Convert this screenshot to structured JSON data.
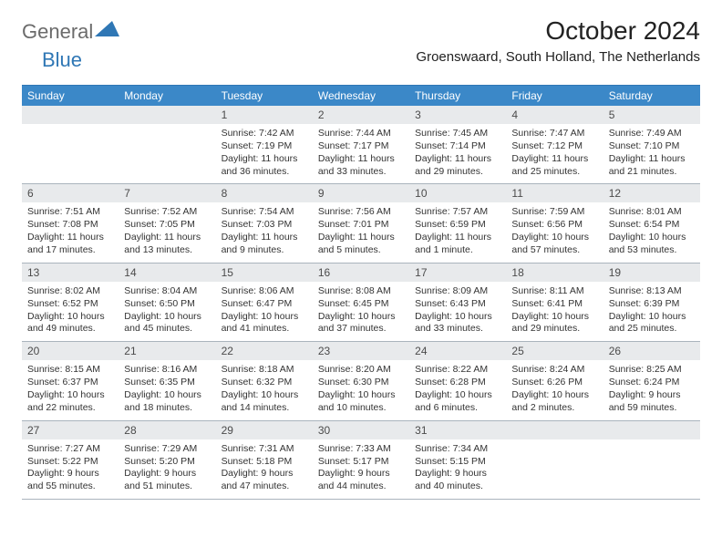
{
  "brand": {
    "part1": "General",
    "part2": "Blue"
  },
  "title": "October 2024",
  "location": "Groenswaard, South Holland, The Netherlands",
  "colors": {
    "header_bg": "#3b88c8",
    "daynum_bg": "#e8eaec",
    "border": "#aab4bd",
    "text": "#333333",
    "logo_gray": "#6b6b6b",
    "logo_blue": "#2f77b5",
    "background": "#ffffff"
  },
  "dayNames": [
    "Sunday",
    "Monday",
    "Tuesday",
    "Wednesday",
    "Thursday",
    "Friday",
    "Saturday"
  ],
  "weeks": [
    [
      {
        "num": "",
        "sunrise": "",
        "sunset": "",
        "daylight": ""
      },
      {
        "num": "",
        "sunrise": "",
        "sunset": "",
        "daylight": ""
      },
      {
        "num": "1",
        "sunrise": "Sunrise: 7:42 AM",
        "sunset": "Sunset: 7:19 PM",
        "daylight": "Daylight: 11 hours and 36 minutes."
      },
      {
        "num": "2",
        "sunrise": "Sunrise: 7:44 AM",
        "sunset": "Sunset: 7:17 PM",
        "daylight": "Daylight: 11 hours and 33 minutes."
      },
      {
        "num": "3",
        "sunrise": "Sunrise: 7:45 AM",
        "sunset": "Sunset: 7:14 PM",
        "daylight": "Daylight: 11 hours and 29 minutes."
      },
      {
        "num": "4",
        "sunrise": "Sunrise: 7:47 AM",
        "sunset": "Sunset: 7:12 PM",
        "daylight": "Daylight: 11 hours and 25 minutes."
      },
      {
        "num": "5",
        "sunrise": "Sunrise: 7:49 AM",
        "sunset": "Sunset: 7:10 PM",
        "daylight": "Daylight: 11 hours and 21 minutes."
      }
    ],
    [
      {
        "num": "6",
        "sunrise": "Sunrise: 7:51 AM",
        "sunset": "Sunset: 7:08 PM",
        "daylight": "Daylight: 11 hours and 17 minutes."
      },
      {
        "num": "7",
        "sunrise": "Sunrise: 7:52 AM",
        "sunset": "Sunset: 7:05 PM",
        "daylight": "Daylight: 11 hours and 13 minutes."
      },
      {
        "num": "8",
        "sunrise": "Sunrise: 7:54 AM",
        "sunset": "Sunset: 7:03 PM",
        "daylight": "Daylight: 11 hours and 9 minutes."
      },
      {
        "num": "9",
        "sunrise": "Sunrise: 7:56 AM",
        "sunset": "Sunset: 7:01 PM",
        "daylight": "Daylight: 11 hours and 5 minutes."
      },
      {
        "num": "10",
        "sunrise": "Sunrise: 7:57 AM",
        "sunset": "Sunset: 6:59 PM",
        "daylight": "Daylight: 11 hours and 1 minute."
      },
      {
        "num": "11",
        "sunrise": "Sunrise: 7:59 AM",
        "sunset": "Sunset: 6:56 PM",
        "daylight": "Daylight: 10 hours and 57 minutes."
      },
      {
        "num": "12",
        "sunrise": "Sunrise: 8:01 AM",
        "sunset": "Sunset: 6:54 PM",
        "daylight": "Daylight: 10 hours and 53 minutes."
      }
    ],
    [
      {
        "num": "13",
        "sunrise": "Sunrise: 8:02 AM",
        "sunset": "Sunset: 6:52 PM",
        "daylight": "Daylight: 10 hours and 49 minutes."
      },
      {
        "num": "14",
        "sunrise": "Sunrise: 8:04 AM",
        "sunset": "Sunset: 6:50 PM",
        "daylight": "Daylight: 10 hours and 45 minutes."
      },
      {
        "num": "15",
        "sunrise": "Sunrise: 8:06 AM",
        "sunset": "Sunset: 6:47 PM",
        "daylight": "Daylight: 10 hours and 41 minutes."
      },
      {
        "num": "16",
        "sunrise": "Sunrise: 8:08 AM",
        "sunset": "Sunset: 6:45 PM",
        "daylight": "Daylight: 10 hours and 37 minutes."
      },
      {
        "num": "17",
        "sunrise": "Sunrise: 8:09 AM",
        "sunset": "Sunset: 6:43 PM",
        "daylight": "Daylight: 10 hours and 33 minutes."
      },
      {
        "num": "18",
        "sunrise": "Sunrise: 8:11 AM",
        "sunset": "Sunset: 6:41 PM",
        "daylight": "Daylight: 10 hours and 29 minutes."
      },
      {
        "num": "19",
        "sunrise": "Sunrise: 8:13 AM",
        "sunset": "Sunset: 6:39 PM",
        "daylight": "Daylight: 10 hours and 25 minutes."
      }
    ],
    [
      {
        "num": "20",
        "sunrise": "Sunrise: 8:15 AM",
        "sunset": "Sunset: 6:37 PM",
        "daylight": "Daylight: 10 hours and 22 minutes."
      },
      {
        "num": "21",
        "sunrise": "Sunrise: 8:16 AM",
        "sunset": "Sunset: 6:35 PM",
        "daylight": "Daylight: 10 hours and 18 minutes."
      },
      {
        "num": "22",
        "sunrise": "Sunrise: 8:18 AM",
        "sunset": "Sunset: 6:32 PM",
        "daylight": "Daylight: 10 hours and 14 minutes."
      },
      {
        "num": "23",
        "sunrise": "Sunrise: 8:20 AM",
        "sunset": "Sunset: 6:30 PM",
        "daylight": "Daylight: 10 hours and 10 minutes."
      },
      {
        "num": "24",
        "sunrise": "Sunrise: 8:22 AM",
        "sunset": "Sunset: 6:28 PM",
        "daylight": "Daylight: 10 hours and 6 minutes."
      },
      {
        "num": "25",
        "sunrise": "Sunrise: 8:24 AM",
        "sunset": "Sunset: 6:26 PM",
        "daylight": "Daylight: 10 hours and 2 minutes."
      },
      {
        "num": "26",
        "sunrise": "Sunrise: 8:25 AM",
        "sunset": "Sunset: 6:24 PM",
        "daylight": "Daylight: 9 hours and 59 minutes."
      }
    ],
    [
      {
        "num": "27",
        "sunrise": "Sunrise: 7:27 AM",
        "sunset": "Sunset: 5:22 PM",
        "daylight": "Daylight: 9 hours and 55 minutes."
      },
      {
        "num": "28",
        "sunrise": "Sunrise: 7:29 AM",
        "sunset": "Sunset: 5:20 PM",
        "daylight": "Daylight: 9 hours and 51 minutes."
      },
      {
        "num": "29",
        "sunrise": "Sunrise: 7:31 AM",
        "sunset": "Sunset: 5:18 PM",
        "daylight": "Daylight: 9 hours and 47 minutes."
      },
      {
        "num": "30",
        "sunrise": "Sunrise: 7:33 AM",
        "sunset": "Sunset: 5:17 PM",
        "daylight": "Daylight: 9 hours and 44 minutes."
      },
      {
        "num": "31",
        "sunrise": "Sunrise: 7:34 AM",
        "sunset": "Sunset: 5:15 PM",
        "daylight": "Daylight: 9 hours and 40 minutes."
      },
      {
        "num": "",
        "sunrise": "",
        "sunset": "",
        "daylight": ""
      },
      {
        "num": "",
        "sunrise": "",
        "sunset": "",
        "daylight": ""
      }
    ]
  ]
}
